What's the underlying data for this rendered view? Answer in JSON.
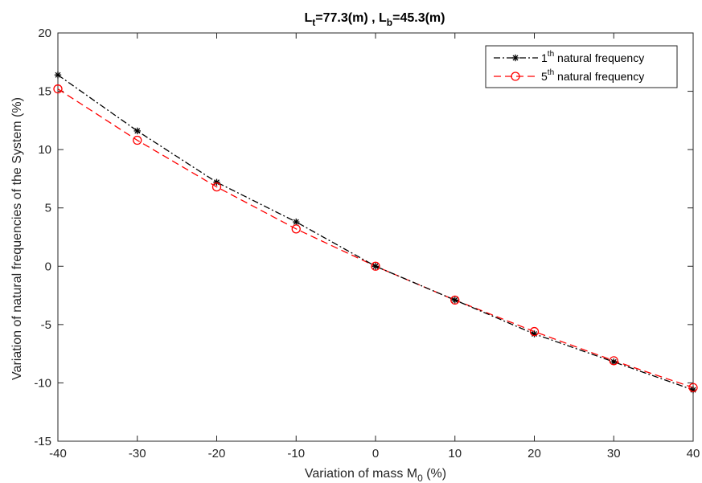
{
  "chart_data": {
    "type": "line",
    "title_parts": {
      "l_main": "L",
      "t_sub": "t",
      "t_val": "=77.3(m) , ",
      "l_main2": "L",
      "b_sub": "b",
      "b_val": "=45.3(m)"
    },
    "xlabel_parts": {
      "main": "Variation of mass M",
      "sub": "0",
      "tail": " (%)"
    },
    "ylabel": "Variation of  natural frequencies of the System (%)",
    "xlim": [
      -40,
      40
    ],
    "ylim": [
      -15,
      20
    ],
    "xticks": [
      -40,
      -30,
      -20,
      -10,
      0,
      10,
      20,
      30,
      40
    ],
    "yticks": [
      -15,
      -10,
      -5,
      0,
      5,
      10,
      15,
      20
    ],
    "grid": false,
    "legend_position": "top-right",
    "x": [
      -40,
      -30,
      -20,
      -10,
      0,
      10,
      20,
      30,
      40
    ],
    "series": [
      {
        "legend_num": "1",
        "legend_sup": "th",
        "legend_text": " natural frequency",
        "values": [
          16.4,
          11.6,
          7.2,
          3.8,
          0,
          -2.9,
          -5.8,
          -8.2,
          -10.6
        ],
        "color": "#000000",
        "marker": "asterisk",
        "line_style": "dash-dot"
      },
      {
        "legend_num": "5",
        "legend_sup": "th",
        "legend_text": " natural frequency",
        "values": [
          15.2,
          10.8,
          6.8,
          3.2,
          0,
          -2.9,
          -5.6,
          -8.1,
          -10.4
        ],
        "color": "#ff0000",
        "marker": "circle",
        "line_style": "dashed"
      }
    ]
  }
}
